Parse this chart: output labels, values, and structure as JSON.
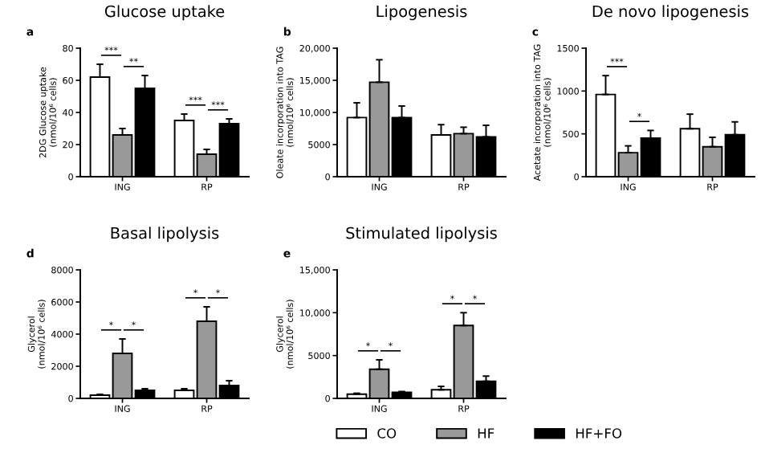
{
  "chart_data": [
    {
      "type": "bar",
      "title": "Glucose uptake",
      "ylabel": "2DG Glucose uptake\n(nmol/10⁶ cells)",
      "categories": [
        "ING",
        "RP"
      ],
      "ylim": [
        0,
        80
      ],
      "yticks": [
        0,
        20,
        40,
        60,
        80
      ],
      "grid": false,
      "legend": "bottom",
      "annotations": [
        "a",
        "***",
        "**",
        "***",
        "***"
      ],
      "series": [
        {
          "name": "CO",
          "color": "#ffffff",
          "values": [
            62,
            35
          ],
          "errors": [
            8,
            4
          ]
        },
        {
          "name": "HF",
          "color": "#999999",
          "values": [
            26,
            14
          ],
          "errors": [
            4,
            3
          ]
        },
        {
          "name": "HF+FO",
          "color": "#000000",
          "values": [
            55,
            33
          ],
          "errors": [
            8,
            3
          ]
        }
      ]
    },
    {
      "type": "bar",
      "title": "Lipogenesis",
      "ylabel": "Oleate incorporation into TAG\n(nmol/10⁶ cells)",
      "categories": [
        "ING",
        "RP"
      ],
      "ylim": [
        0,
        20000
      ],
      "yticks": [
        0,
        {
          "value": 5000,
          "label": "5000"
        },
        {
          "value": 10000,
          "label": "10,000"
        },
        {
          "value": 15000,
          "label": "15,000"
        },
        {
          "value": 20000,
          "label": "20,000"
        }
      ],
      "grid": false,
      "annotations": [
        "b"
      ],
      "series": [
        {
          "color": "#ffffff",
          "values": [
            9200,
            6500
          ],
          "errors": [
            2300,
            1600
          ]
        },
        {
          "color": "#999999",
          "values": [
            14700,
            6700
          ],
          "errors": [
            3500,
            1000
          ]
        },
        {
          "color": "#000000",
          "values": [
            9200,
            6200
          ],
          "errors": [
            1800,
            1800
          ]
        }
      ]
    },
    {
      "type": "bar",
      "title": "De novo lipogenesis",
      "ylabel": "Acetate incorporation into TAG\n(nmol/10⁶ cells)",
      "categories": [
        "ING",
        "RP"
      ],
      "ylim": [
        0,
        1500
      ],
      "yticks": [
        0,
        500,
        1000,
        1500
      ],
      "grid": false,
      "annotations": [
        "c",
        "***",
        "*"
      ],
      "series": [
        {
          "color": "#ffffff",
          "values": [
            960,
            560
          ],
          "errors": [
            220,
            170
          ]
        },
        {
          "color": "#999999",
          "values": [
            280,
            350
          ],
          "errors": [
            80,
            110
          ]
        },
        {
          "color": "#000000",
          "values": [
            450,
            490
          ],
          "errors": [
            90,
            150
          ]
        }
      ]
    },
    {
      "type": "bar",
      "title": "Basal lipolysis",
      "ylabel": "Glycerol\n(nmol/10⁶ cells)",
      "categories": [
        "ING",
        "RP"
      ],
      "ylim": [
        0,
        8000
      ],
      "yticks": [
        0,
        2000,
        4000,
        6000,
        8000
      ],
      "grid": false,
      "annotations": [
        "d",
        "*",
        "*",
        "*",
        "*"
      ],
      "series": [
        {
          "color": "#ffffff",
          "values": [
            200,
            500
          ],
          "errors": [
            50,
            100
          ]
        },
        {
          "color": "#999999",
          "values": [
            2800,
            4800
          ],
          "errors": [
            900,
            900
          ]
        },
        {
          "color": "#000000",
          "values": [
            500,
            800
          ],
          "errors": [
            100,
            300
          ]
        }
      ]
    },
    {
      "type": "bar",
      "title": "Stimulated lipolysis",
      "ylabel": "Glycerol\n(nmol/10⁶ cells)",
      "categories": [
        "ING",
        "RP"
      ],
      "ylim": [
        0,
        15000
      ],
      "yticks": [
        0,
        {
          "value": 5000,
          "label": "5000"
        },
        {
          "value": 10000,
          "label": "10,000"
        },
        {
          "value": 15000,
          "label": "15,000"
        }
      ],
      "grid": false,
      "annotations": [
        "e",
        "*",
        "*",
        "*",
        "*"
      ],
      "series": [
        {
          "color": "#ffffff",
          "values": [
            500,
            1000
          ],
          "errors": [
            100,
            400
          ]
        },
        {
          "color": "#999999",
          "values": [
            3400,
            8500
          ],
          "errors": [
            1100,
            1500
          ]
        },
        {
          "color": "#000000",
          "values": [
            700,
            2000
          ],
          "errors": [
            100,
            600
          ]
        }
      ]
    }
  ]
}
